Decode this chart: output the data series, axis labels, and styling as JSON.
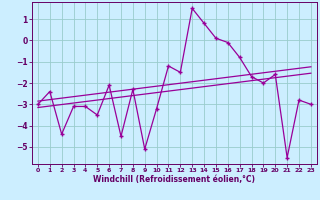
{
  "x_data": [
    0,
    1,
    2,
    3,
    4,
    5,
    6,
    7,
    8,
    9,
    10,
    11,
    12,
    13,
    14,
    15,
    16,
    17,
    18,
    19,
    20,
    21,
    22,
    23
  ],
  "y_main": [
    -3,
    -2.4,
    -4.4,
    -3.1,
    -3.1,
    -3.5,
    -2.1,
    -4.5,
    -2.3,
    -5.1,
    -3.2,
    -1.2,
    -1.5,
    1.5,
    0.8,
    0.1,
    -0.1,
    -0.8,
    -1.7,
    -2.0,
    -1.6,
    -5.5,
    -2.8,
    -3.0
  ],
  "y_trend1": [
    -2.85,
    -2.78,
    -2.71,
    -2.64,
    -2.57,
    -2.5,
    -2.43,
    -2.36,
    -2.29,
    -2.22,
    -2.15,
    -2.08,
    -2.01,
    -1.94,
    -1.87,
    -1.8,
    -1.73,
    -1.66,
    -1.59,
    -1.52,
    -1.45,
    -1.38,
    -1.31,
    -1.24
  ],
  "y_trend2": [
    -3.15,
    -3.08,
    -3.01,
    -2.94,
    -2.87,
    -2.8,
    -2.73,
    -2.66,
    -2.59,
    -2.52,
    -2.45,
    -2.38,
    -2.31,
    -2.24,
    -2.17,
    -2.1,
    -2.03,
    -1.96,
    -1.89,
    -1.82,
    -1.75,
    -1.68,
    -1.61,
    -1.54
  ],
  "line_color": "#990099",
  "bg_color": "#cceeff",
  "grid_color": "#99cccc",
  "text_color": "#660066",
  "xlabel": "Windchill (Refroidissement éolien,°C)",
  "xlim": [
    -0.5,
    23.5
  ],
  "ylim": [
    -5.8,
    1.8
  ],
  "yticks": [
    1,
    0,
    -1,
    -2,
    -3,
    -4,
    -5
  ],
  "xticks": [
    0,
    1,
    2,
    3,
    4,
    5,
    6,
    7,
    8,
    9,
    10,
    11,
    12,
    13,
    14,
    15,
    16,
    17,
    18,
    19,
    20,
    21,
    22,
    23
  ],
  "marker": "+"
}
